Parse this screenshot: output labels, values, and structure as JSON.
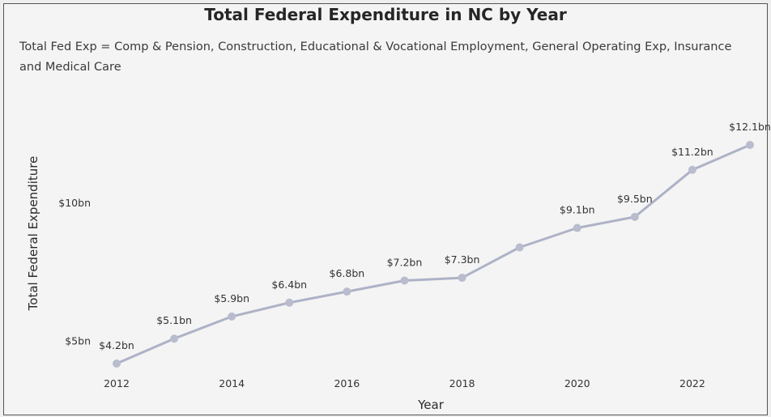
{
  "chart_data": {
    "type": "line",
    "title": "Total Federal Expenditure in NC by Year",
    "subtitle": "Total Fed Exp = Comp & Pension, Construction, Educational & Vocational Employment, General Operating Exp, Insurance and Medical Care",
    "xlabel": "Year",
    "ylabel": "Total Federal Expenditure",
    "x": [
      2012,
      2013,
      2014,
      2015,
      2016,
      2017,
      2018,
      2019,
      2020,
      2021,
      2022,
      2023
    ],
    "values": [
      4.2,
      5.1,
      5.9,
      6.4,
      6.8,
      7.2,
      7.3,
      8.4,
      9.1,
      9.5,
      11.2,
      12.1
    ],
    "data_labels": [
      "$4.2bn",
      "$5.1bn",
      "$5.9bn",
      "$6.4bn",
      "$6.8bn",
      "$7.2bn",
      "$7.3bn",
      "",
      "$9.1bn",
      "$9.5bn",
      "$11.2bn",
      "$12.1bn"
    ],
    "x_ticks": [
      "2012",
      "2014",
      "2016",
      "2018",
      "2020",
      "2022"
    ],
    "y_ticks": [
      {
        "value": 5,
        "label": "$5bn"
      },
      {
        "value": 10,
        "label": "$10bn"
      }
    ],
    "ylim": [
      4.2,
      12.1
    ],
    "grid": false,
    "line_color": "#aeb2c6",
    "marker_color": "#b9bccd"
  }
}
